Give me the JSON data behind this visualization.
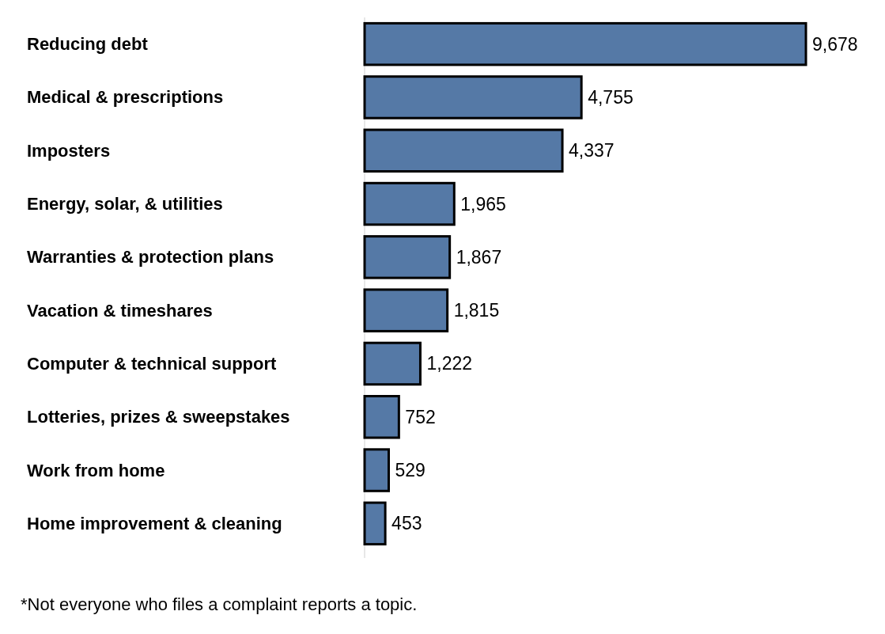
{
  "chart_data": {
    "type": "bar",
    "orientation": "horizontal",
    "categories": [
      "Reducing debt",
      "Medical & prescriptions",
      "Imposters",
      "Energy, solar, & utilities",
      "Warranties & protection plans",
      "Vacation & timeshares",
      "Computer & technical support",
      "Lotteries, prizes & sweepstakes",
      "Work from home",
      "Home improvement & cleaning"
    ],
    "values": [
      9678,
      4755,
      4337,
      1965,
      1867,
      1815,
      1222,
      752,
      529,
      453
    ],
    "color": "#5579a6",
    "value_labels": [
      "9,678",
      "4,755",
      "4,337",
      "1,965",
      "1,867",
      "1,815",
      "1,222",
      "752",
      "529",
      "453"
    ],
    "annotations": [
      "*Not everyone who files a complaint reports a topic."
    ]
  }
}
